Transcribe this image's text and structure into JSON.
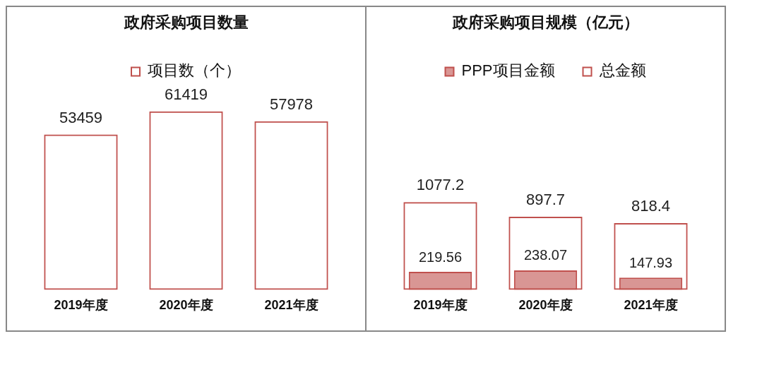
{
  "chart_data": [
    {
      "type": "bar",
      "title": "政府采购项目数量",
      "categories": [
        "2019年度",
        "2020年度",
        "2021年度"
      ],
      "series": [
        {
          "name": "项目数（个）",
          "color": "#c0504d",
          "values": [
            53459,
            61419,
            57978
          ]
        }
      ],
      "data_labels": true,
      "legend": "top",
      "grid": false
    },
    {
      "type": "bar",
      "title": "政府采购项目规模（亿元）",
      "categories": [
        "2019年度",
        "2020年度",
        "2021年度"
      ],
      "series": [
        {
          "name": "PPP项目金额",
          "color": "#c0504d",
          "values": [
            219.56,
            238.07,
            147.93
          ]
        },
        {
          "name": "总金额",
          "color": "#c0504d",
          "values": [
            1077.2,
            897.7,
            818.4
          ]
        }
      ],
      "data_labels": true,
      "legend": "top",
      "grid": false
    }
  ]
}
